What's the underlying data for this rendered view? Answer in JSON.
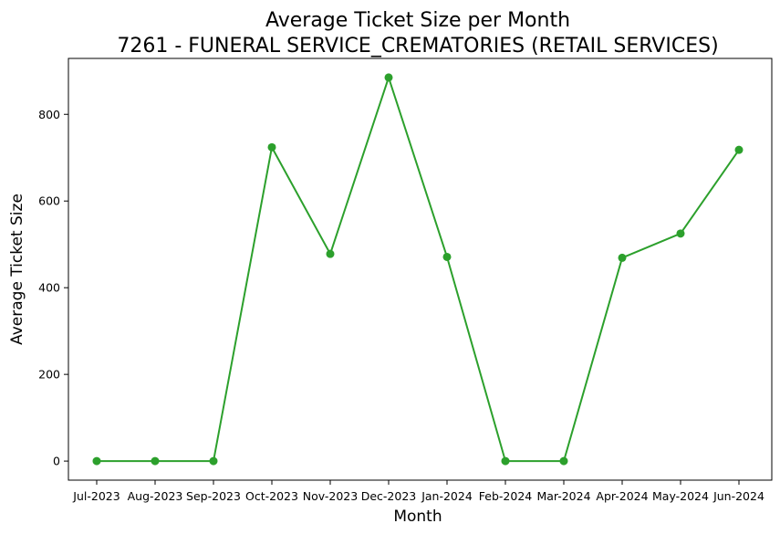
{
  "chart_data": {
    "type": "line",
    "title": "Average Ticket Size per Month",
    "subtitle": "7261 - FUNERAL SERVICE_CREMATORIES (RETAIL SERVICES)",
    "xlabel": "Month",
    "ylabel": "Average Ticket Size",
    "categories": [
      "Jul-2023",
      "Aug-2023",
      "Sep-2023",
      "Oct-2023",
      "Nov-2023",
      "Dec-2023",
      "Jan-2024",
      "Feb-2024",
      "Mar-2024",
      "Apr-2024",
      "May-2024",
      "Jun-2024"
    ],
    "series": [
      {
        "values": [
          0,
          0,
          0,
          724,
          478,
          885,
          471,
          0,
          0,
          469,
          525,
          718
        ],
        "color": "#2ca02c"
      }
    ],
    "yticks": [
      0,
      200,
      400,
      600,
      800
    ],
    "ylim": [
      -44,
      929
    ],
    "grid": false,
    "legend": "none"
  }
}
